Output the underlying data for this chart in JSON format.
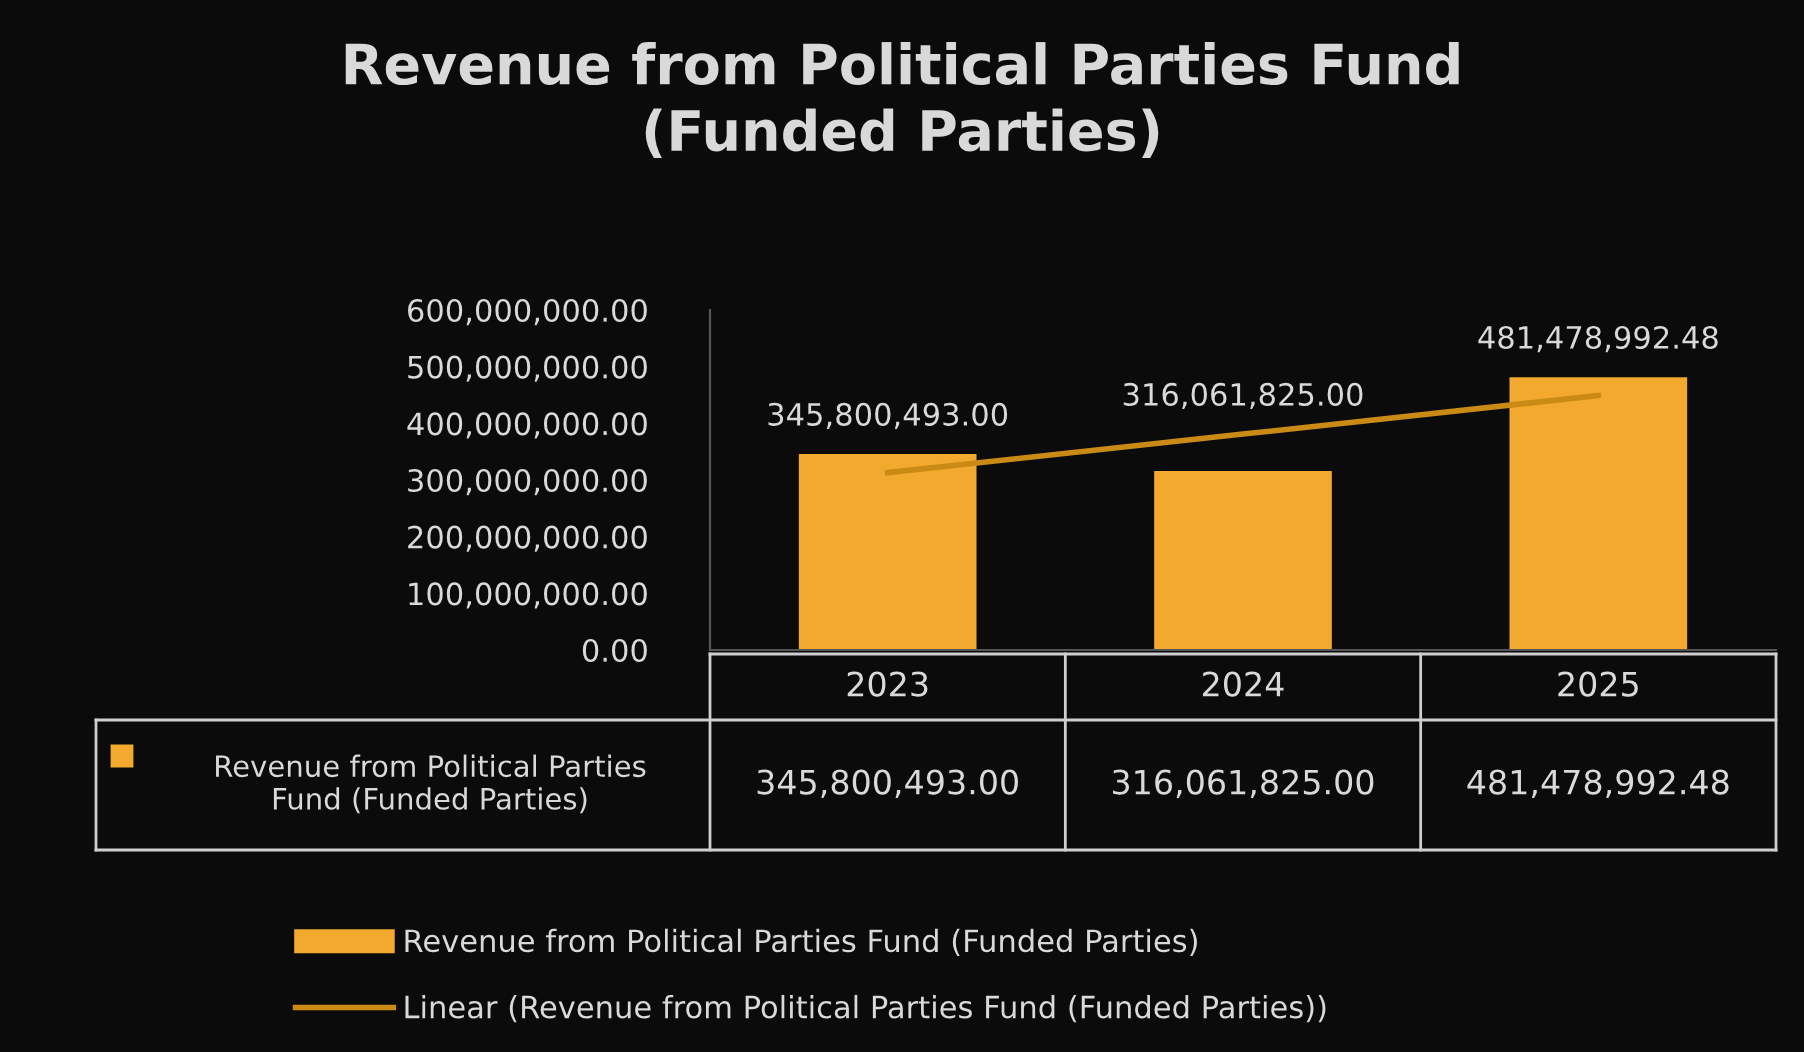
{
  "chart_data": {
    "type": "bar",
    "title": "Revenue from Political Parties Fund\n(Funded Parties)",
    "categories": [
      "2023",
      "2024",
      "2025"
    ],
    "series": [
      {
        "name": "Revenue from Political Parties Fund (Funded Parties)",
        "color": "#f2a92e",
        "values": [
          345800493.0,
          316061825.0,
          481478992.48
        ],
        "value_labels": [
          "345,800,493.00",
          "316,061,825.00",
          "481,478,992.48"
        ]
      },
      {
        "name": "Linear (Revenue from Political Parties Fund (Funded Parties))",
        "type": "line",
        "color": "#c98a16",
        "values": [
          313000000,
          381000000,
          449000000
        ]
      }
    ],
    "ylim": [
      0,
      600000000
    ],
    "yticks": [
      {
        "value": 0,
        "label": "0.00"
      },
      {
        "value": 100000000,
        "label": "100,000,000.00"
      },
      {
        "value": 200000000,
        "label": "200,000,000.00"
      },
      {
        "value": 300000000,
        "label": "300,000,000.00"
      },
      {
        "value": 400000000,
        "label": "400,000,000.00"
      },
      {
        "value": 500000000,
        "label": "500,000,000.00"
      },
      {
        "value": 600000000,
        "label": "600,000,000.00"
      }
    ],
    "grid": false,
    "legend": "bottom",
    "marker": "none",
    "line_style": "solid"
  }
}
